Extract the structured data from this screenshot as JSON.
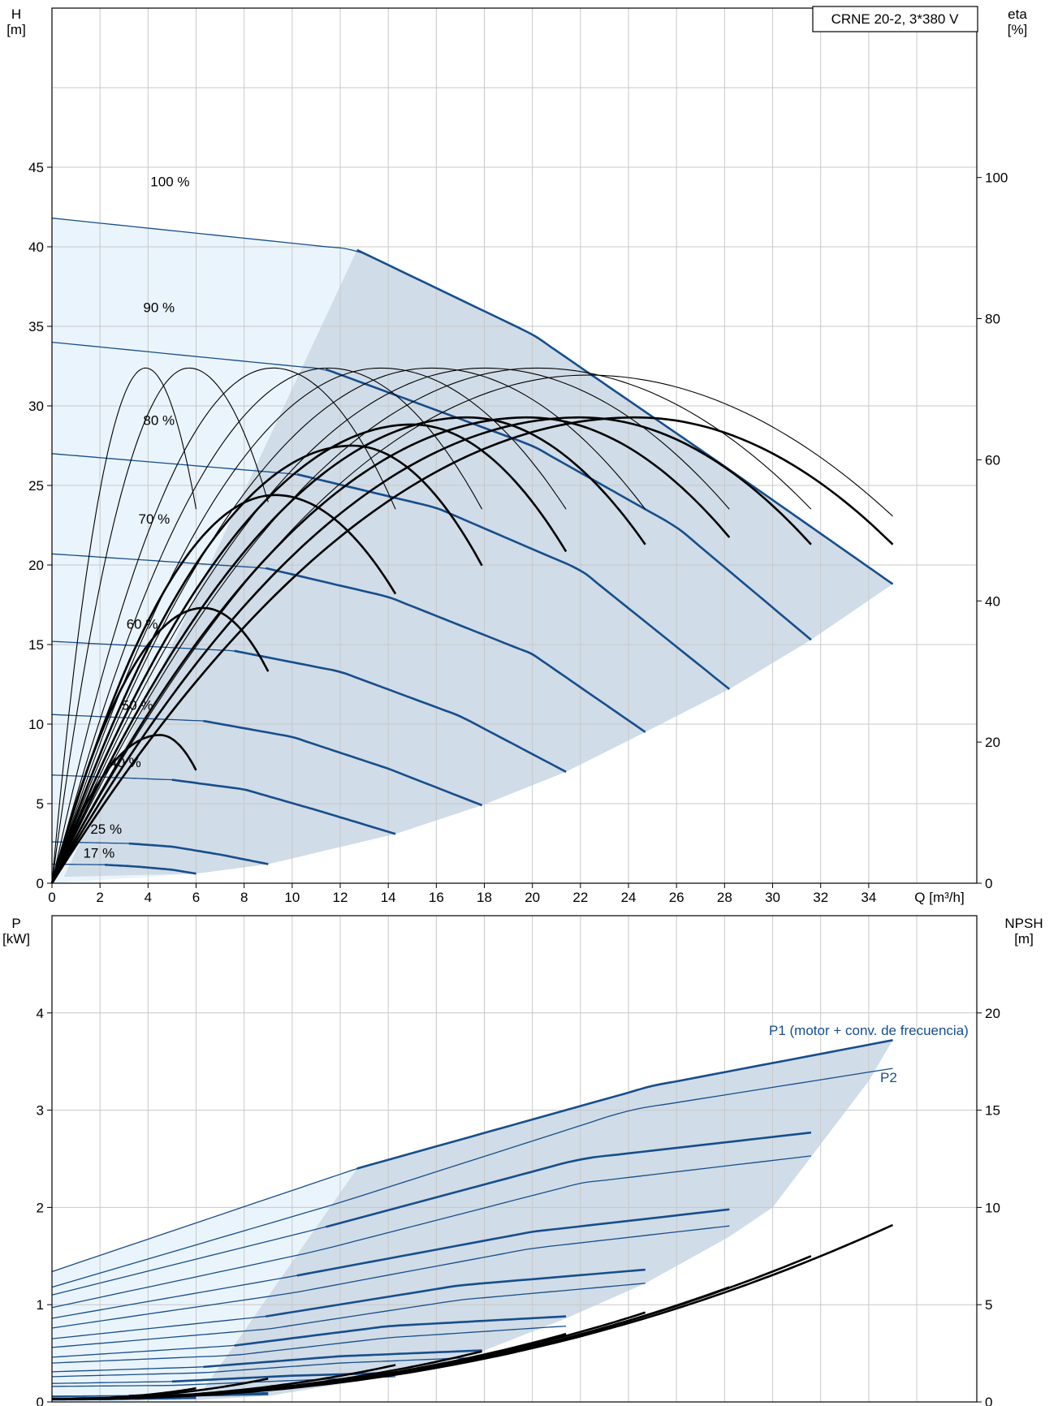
{
  "chart_data": [
    {
      "type": "line",
      "title": "CRNE 20-2, 3*380 V",
      "xlabel": "Q [m³/h]",
      "ylabel_left": [
        "H",
        "[m]"
      ],
      "ylabel_right": [
        "eta",
        "[%]"
      ],
      "x_ticks": [
        0,
        2,
        4,
        6,
        8,
        10,
        12,
        14,
        16,
        18,
        20,
        22,
        24,
        26,
        28,
        30,
        32,
        34
      ],
      "y_left_ticks": [
        0,
        5,
        10,
        15,
        20,
        25,
        30,
        35,
        40,
        45
      ],
      "y_right_ticks": [
        0,
        20,
        40,
        60,
        80,
        100
      ],
      "xlim": [
        0,
        38.5
      ],
      "ylim_left": [
        0,
        55
      ],
      "ylim_right": [
        0,
        124
      ],
      "grid": true,
      "colors": {
        "head": "#164e8c",
        "eta": "#000000",
        "op_area": "#d0dce7",
        "ext_area": "#eaf4fc"
      },
      "head_curves": [
        {
          "label": "100 %",
          "points": [
            [
              0,
              41.8
            ],
            [
              12.7,
              39.8
            ],
            [
              20,
              34.5
            ],
            [
              28,
              26.2
            ],
            [
              35,
              18.8
            ]
          ]
        },
        {
          "label": "90 %",
          "points": [
            [
              0,
              34.0
            ],
            [
              11.4,
              32.3
            ],
            [
              20,
              27.5
            ],
            [
              26,
              22.4
            ],
            [
              31.6,
              15.3
            ]
          ]
        },
        {
          "label": "80 %",
          "points": [
            [
              0,
              27.0
            ],
            [
              10.2,
              25.7
            ],
            [
              16,
              23.6
            ],
            [
              22,
              19.7
            ],
            [
              28.2,
              12.2
            ]
          ]
        },
        {
          "label": "70 %",
          "points": [
            [
              0,
              20.7
            ],
            [
              8.9,
              19.8
            ],
            [
              14,
              18.0
            ],
            [
              20,
              14.4
            ],
            [
              24.7,
              9.5
            ]
          ]
        },
        {
          "label": "60 %",
          "points": [
            [
              0,
              15.2
            ],
            [
              7.6,
              14.6
            ],
            [
              12,
              13.3
            ],
            [
              17,
              10.5
            ],
            [
              21.4,
              7.0
            ]
          ]
        },
        {
          "label": "50 %",
          "points": [
            [
              0,
              10.6
            ],
            [
              6.3,
              10.2
            ],
            [
              10,
              9.2
            ],
            [
              14,
              7.2
            ],
            [
              17.9,
              4.9
            ]
          ]
        },
        {
          "label": "40 %",
          "points": [
            [
              0,
              6.8
            ],
            [
              5.0,
              6.5
            ],
            [
              8,
              5.9
            ],
            [
              11,
              4.6
            ],
            [
              14.3,
              3.1
            ]
          ]
        },
        {
          "label": "25 %",
          "points": [
            [
              0,
              2.6
            ],
            [
              3.2,
              2.5
            ],
            [
              5,
              2.3
            ],
            [
              7,
              1.8
            ],
            [
              9.0,
              1.2
            ]
          ]
        },
        {
          "label": "17 %",
          "points": [
            [
              0,
              1.2
            ],
            [
              2.2,
              1.16
            ],
            [
              3.5,
              1.05
            ],
            [
              5,
              0.85
            ],
            [
              6.0,
              0.6
            ]
          ]
        }
      ],
      "eta_curves": [
        {
          "qmax": 6.0,
          "peak_q": 3.9,
          "peak": 73,
          "end": 53
        },
        {
          "qmax": 9.0,
          "peak_q": 5.7,
          "peak": 73,
          "end": 54
        },
        {
          "qmax": 14.3,
          "peak_q": 9.2,
          "peak": 73,
          "end": 53
        },
        {
          "qmax": 17.9,
          "peak_q": 11.5,
          "peak": 73,
          "end": 53
        },
        {
          "qmax": 21.4,
          "peak_q": 13.7,
          "peak": 73,
          "end": 53
        },
        {
          "qmax": 24.7,
          "peak_q": 15.8,
          "peak": 73,
          "end": 53
        },
        {
          "qmax": 28.2,
          "peak_q": 18.0,
          "peak": 73,
          "end": 53
        },
        {
          "qmax": 31.6,
          "peak_q": 20.2,
          "peak": 73,
          "end": 53
        },
        {
          "qmax": 35.0,
          "peak_q": 22.3,
          "peak": 72,
          "end": 52
        },
        {
          "qmax": 9.0,
          "peak_q": 6.3,
          "peak": 39,
          "end": 30
        },
        {
          "qmax": 6.0,
          "peak_q": 4.5,
          "peak": 21,
          "end": 16
        },
        {
          "qmax": 14.3,
          "peak_q": 9.3,
          "peak": 55,
          "end": 41
        },
        {
          "qmax": 17.9,
          "peak_q": 12.5,
          "peak": 62,
          "end": 45
        },
        {
          "qmax": 21.4,
          "peak_q": 15.0,
          "peak": 65,
          "end": 47
        },
        {
          "qmax": 24.7,
          "peak_q": 17.3,
          "peak": 66,
          "end": 48
        },
        {
          "qmax": 28.2,
          "peak_q": 19.8,
          "peak": 66,
          "end": 49
        },
        {
          "qmax": 31.6,
          "peak_q": 22.0,
          "peak": 66,
          "end": 48
        },
        {
          "qmax": 35.0,
          "peak_q": 24.3,
          "peak": 66,
          "end": 48
        }
      ]
    },
    {
      "type": "line",
      "xlabel": "",
      "ylabel_left": [
        "P",
        "[kW]"
      ],
      "ylabel_right": [
        "NPSH",
        "[m]"
      ],
      "y_left_ticks": [
        0,
        1,
        2,
        3,
        4
      ],
      "y_right_ticks": [
        0,
        5,
        10,
        15,
        20
      ],
      "ylim_left": [
        0,
        5
      ],
      "ylim_right": [
        0,
        25
      ],
      "series_labels": {
        "p1": "P1 (motor + conv. de frecuencia)",
        "p2": "P2"
      },
      "p1_curves": [
        {
          "points": [
            [
              0,
              1.34
            ],
            [
              12.7,
              2.4
            ],
            [
              25,
              3.25
            ],
            [
              35,
              3.72
            ]
          ]
        },
        {
          "points": [
            [
              0,
              1.1
            ],
            [
              11.4,
              1.8
            ],
            [
              22,
              2.5
            ],
            [
              31.6,
              2.77
            ]
          ]
        },
        {
          "points": [
            [
              0,
              0.86
            ],
            [
              10.2,
              1.3
            ],
            [
              20,
              1.75
            ],
            [
              28.2,
              1.98
            ]
          ]
        },
        {
          "points": [
            [
              0,
              0.65
            ],
            [
              8.9,
              0.88
            ],
            [
              17,
              1.2
            ],
            [
              24.7,
              1.36
            ]
          ]
        },
        {
          "points": [
            [
              0,
              0.46
            ],
            [
              7.6,
              0.58
            ],
            [
              14,
              0.78
            ],
            [
              21.4,
              0.88
            ]
          ]
        },
        {
          "points": [
            [
              0,
              0.31
            ],
            [
              6.3,
              0.36
            ],
            [
              12,
              0.47
            ],
            [
              17.9,
              0.53
            ]
          ]
        },
        {
          "points": [
            [
              0,
              0.19
            ],
            [
              5.0,
              0.21
            ],
            [
              10,
              0.27
            ],
            [
              14.3,
              0.3
            ]
          ]
        },
        {
          "points": [
            [
              0,
              0.06
            ],
            [
              3.2,
              0.065
            ],
            [
              7,
              0.08
            ],
            [
              9.0,
              0.09
            ]
          ]
        },
        {
          "points": [
            [
              0,
              0.03
            ],
            [
              2.2,
              0.032
            ],
            [
              4.5,
              0.04
            ],
            [
              6.0,
              0.045
            ]
          ]
        }
      ],
      "p2_curves": [
        {
          "points": [
            [
              0,
              1.18
            ],
            [
              12,
              2.05
            ],
            [
              24,
              3.0
            ],
            [
              35,
              3.43
            ]
          ]
        },
        {
          "points": [
            [
              0,
              0.97
            ],
            [
              11,
              1.55
            ],
            [
              22,
              2.25
            ],
            [
              31.6,
              2.53
            ]
          ]
        },
        {
          "points": [
            [
              0,
              0.76
            ],
            [
              10,
              1.12
            ],
            [
              20,
              1.58
            ],
            [
              28.2,
              1.81
            ]
          ]
        },
        {
          "points": [
            [
              0,
              0.56
            ],
            [
              9,
              0.75
            ],
            [
              17,
              1.05
            ],
            [
              24.7,
              1.22
            ]
          ]
        },
        {
          "points": [
            [
              0,
              0.4
            ],
            [
              7.6,
              0.48
            ],
            [
              14,
              0.66
            ],
            [
              21.4,
              0.78
            ]
          ]
        },
        {
          "points": [
            [
              0,
              0.26
            ],
            [
              6.3,
              0.3
            ],
            [
              12,
              0.4
            ],
            [
              17.9,
              0.46
            ]
          ]
        },
        {
          "points": [
            [
              0,
              0.16
            ],
            [
              5,
              0.17
            ],
            [
              10,
              0.22
            ],
            [
              14.3,
              0.26
            ]
          ]
        },
        {
          "points": [
            [
              0,
              0.05
            ],
            [
              3.2,
              0.05
            ],
            [
              7,
              0.065
            ],
            [
              9.0,
              0.075
            ]
          ]
        },
        {
          "points": [
            [
              0,
              0.02
            ],
            [
              2.2,
              0.022
            ],
            [
              4.5,
              0.03
            ],
            [
              6.0,
              0.035
            ]
          ]
        }
      ],
      "npsh_curves": [
        {
          "qmax": 35.0,
          "end": 9.1
        },
        {
          "qmax": 31.6,
          "end": 7.5
        },
        {
          "qmax": 28.2,
          "end": 5.9
        },
        {
          "qmax": 24.7,
          "end": 4.6
        },
        {
          "qmax": 21.4,
          "end": 3.5
        },
        {
          "qmax": 17.9,
          "end": 2.6
        },
        {
          "qmax": 14.3,
          "end": 1.9
        },
        {
          "qmax": 9.0,
          "end": 1.2
        },
        {
          "qmax": 6.0,
          "end": 0.7
        }
      ]
    }
  ]
}
